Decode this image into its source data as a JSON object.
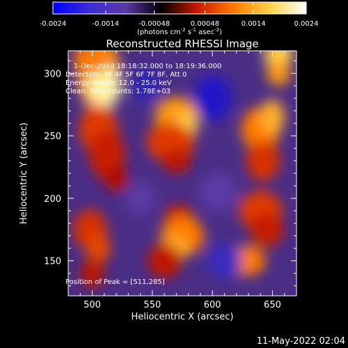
{
  "chart_data": {
    "type": "heatmap",
    "title": "Reconstructed RHESSI Image",
    "xlabel": "Heliocentric X (arcsec)",
    "ylabel": "Heliocentric Y (arcsec)",
    "xlim": [
      480,
      670
    ],
    "ylim": [
      122,
      318
    ],
    "x_ticks": [
      500,
      550,
      600,
      650
    ],
    "y_ticks": [
      150,
      200,
      250,
      300
    ],
    "colorbar": {
      "range": [
        -0.0024,
        0.0024
      ],
      "tick_values": [
        -0.0024,
        -0.0014,
        -0.00048,
        0.00048,
        0.0014,
        0.0024
      ],
      "tick_labels": [
        "-0.0024",
        "-0.0014",
        "-0.00048",
        "0.00048",
        "0.0014",
        "0.0024"
      ],
      "units_prefix": "(photons cm",
      "units_exp1": "-2",
      "units_mid": " s",
      "units_exp2": "-1",
      "units_mid2": " asec",
      "units_exp3": "-2",
      "units_suffix": ")"
    },
    "annotations": [
      "1-Dec-2010 18:18:32.000 to 18:19:36.000",
      "Detectors: 3F 4F 5F 6F 7F 8F, Att 0",
      "Energy Range: 12.0 - 25.0 keV",
      "Clean. Total counts: 1.78E+03"
    ],
    "peak_label": "Position of Peak = [511,285]",
    "peak": [
      511,
      285
    ],
    "colormap": [
      "#0000ff",
      "#3c2bd6",
      "#5a3aa5",
      "#000000",
      "#cc1a00",
      "#ff7a00",
      "#ffd24a",
      "#ffffff"
    ]
  },
  "footer_date": "11-May-2022 02:04"
}
